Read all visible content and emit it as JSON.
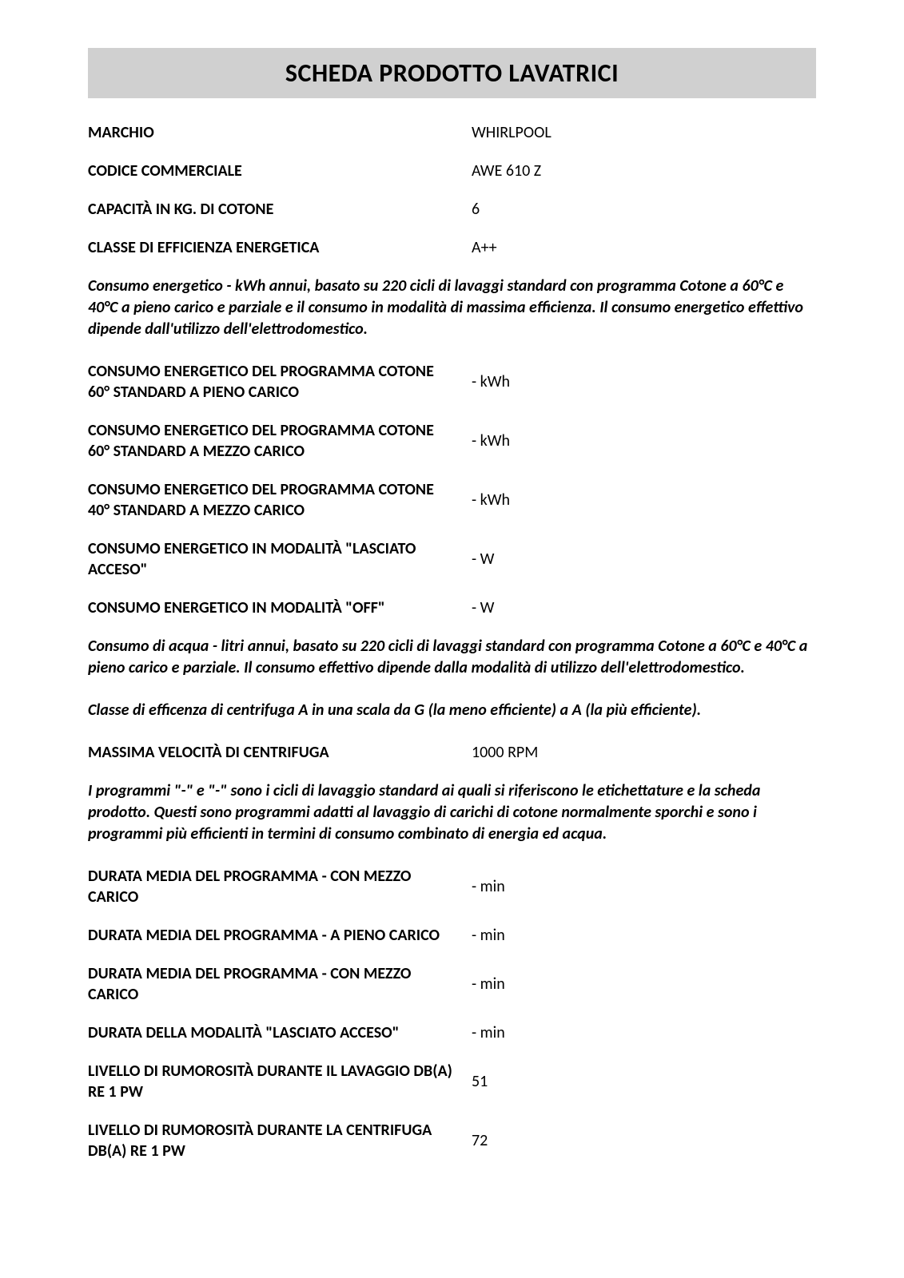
{
  "document": {
    "title": "SCHEDA PRODOTTO LAVATRICI",
    "title_bar_bg": "#d0d0d0",
    "title_fontsize": 32,
    "label_fontsize": 20,
    "value_fontsize": 20,
    "note_fontsize": 20,
    "text_color": "#000000",
    "page_bg": "#ffffff"
  },
  "header_rows": [
    {
      "label": "MARCHIO",
      "value": "WHIRLPOOL"
    },
    {
      "label": "CODICE COMMERCIALE",
      "value": "AWE 610 Z"
    },
    {
      "label": "CAPACITÀ IN KG. DI COTONE",
      "value": "6"
    },
    {
      "label": "CLASSE DI EFFICIENZA ENERGETICA",
      "value": "A++"
    }
  ],
  "note1": "Consumo energetico - kWh annui, basato su 220 cicli di lavaggi standard con programma Cotone a 60°C e 40°C a pieno carico e parziale e il consumo in modalità di massima efficienza. Il consumo energetico effettivo dipende dall'utilizzo dell'elettrodomestico.",
  "energy_rows": [
    {
      "label": "CONSUMO ENERGETICO DEL PROGRAMMA COTONE 60° STANDARD A PIENO CARICO",
      "value": "- kWh"
    },
    {
      "label": "CONSUMO ENERGETICO DEL PROGRAMMA COTONE 60° STANDARD A MEZZO CARICO",
      "value": "- kWh"
    },
    {
      "label": "CONSUMO ENERGETICO DEL PROGRAMMA COTONE 40° STANDARD A MEZZO CARICO",
      "value": "- kWh"
    },
    {
      "label": "CONSUMO ENERGETICO IN MODALITÀ \"LASCIATO ACCESO\"",
      "value": "- W"
    },
    {
      "label": "CONSUMO ENERGETICO IN MODALITÀ \"OFF\"",
      "value": "- W"
    }
  ],
  "note2": "Consumo di acqua - litri annui, basato su 220 cicli di lavaggi standard con programma Cotone a 60°C e 40°C a pieno carico e parziale. Il consumo effettivo dipende dalla modalità di utilizzo dell'elettrodomestico.",
  "note3": "Classe di efficenza di centrifuga A in una scala da G (la meno efficiente) a A (la più efficiente).",
  "spin_row": {
    "label": "MASSIMA VELOCITÀ DI CENTRIFUGA",
    "value": "1000 RPM"
  },
  "note4": "I programmi \"-\" e \"-\" sono i cicli di lavaggio standard ai quali si riferiscono le etichettature e la scheda prodotto. Questi sono programmi adatti al lavaggio di carichi di cotone normalmente sporchi e sono i programmi più efficienti in termini di consumo combinato di energia ed acqua.",
  "duration_rows": [
    {
      "label": "DURATA MEDIA DEL PROGRAMMA - CON MEZZO CARICO",
      "value": "- min"
    },
    {
      "label": "DURATA MEDIA DEL PROGRAMMA - A PIENO CARICO",
      "value": "- min"
    },
    {
      "label": "DURATA MEDIA DEL PROGRAMMA - CON MEZZO CARICO",
      "value": "- min"
    },
    {
      "label": "DURATA DELLA MODALITÀ \"LASCIATO ACCESO\"",
      "value": "- min"
    },
    {
      "label": "LIVELLO DI RUMOROSITÀ DURANTE IL LAVAGGIO DB(A) RE 1 PW",
      "value": "51"
    },
    {
      "label": "LIVELLO DI RUMOROSITÀ DURANTE LA CENTRIFUGA DB(A) RE 1 PW",
      "value": "72"
    }
  ]
}
